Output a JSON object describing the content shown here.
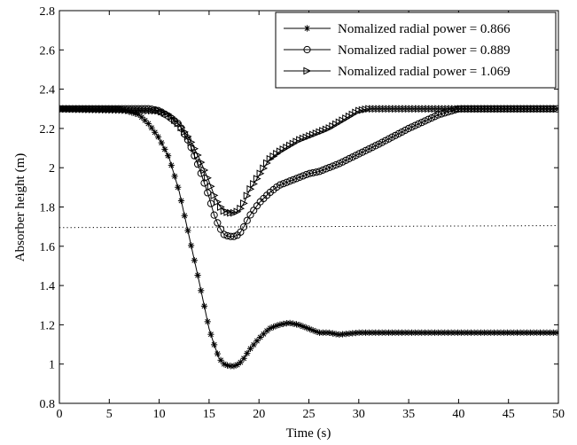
{
  "chart_data": {
    "type": "line",
    "xlabel": "Time (s)",
    "ylabel": "Absorber height (m)",
    "xlim": [
      0,
      50
    ],
    "ylim": [
      0.8,
      2.8
    ],
    "xticks": [
      "0",
      "5",
      "10",
      "15",
      "20",
      "25",
      "30",
      "35",
      "40",
      "45",
      "50"
    ],
    "yticks": [
      "0.8",
      "1",
      "1.2",
      "1.4",
      "1.6",
      "1.8",
      "2",
      "2.2",
      "2.4",
      "2.6",
      "2.8"
    ],
    "grid": false,
    "legend_position": "top-right",
    "series": [
      {
        "name": "Nomalized radial power = 0.866",
        "marker": "star",
        "x": [
          0,
          6,
          8,
          9,
          10,
          11,
          12,
          13,
          14,
          15,
          15.5,
          16,
          16.5,
          17,
          17.5,
          18,
          18.5,
          19,
          20,
          21,
          22,
          23,
          24,
          25,
          26,
          27,
          28,
          30,
          35,
          40,
          45,
          50
        ],
        "y": [
          2.3,
          2.3,
          2.27,
          2.22,
          2.15,
          2.05,
          1.88,
          1.65,
          1.42,
          1.18,
          1.1,
          1.03,
          1.0,
          0.99,
          0.99,
          1.0,
          1.03,
          1.07,
          1.13,
          1.18,
          1.2,
          1.21,
          1.2,
          1.18,
          1.16,
          1.16,
          1.15,
          1.16,
          1.16,
          1.16,
          1.16,
          1.16
        ]
      },
      {
        "name": "Nomalized radial power = 0.889",
        "marker": "circle",
        "x": [
          0,
          8,
          9,
          10,
          11,
          12,
          13,
          14,
          15,
          15.5,
          16,
          16.5,
          17,
          17.5,
          18,
          18.5,
          19,
          20,
          21,
          22,
          23,
          24,
          25,
          26,
          28,
          30,
          32,
          35,
          38,
          40,
          45,
          50
        ],
        "y": [
          2.3,
          2.3,
          2.3,
          2.29,
          2.26,
          2.22,
          2.13,
          2.0,
          1.85,
          1.76,
          1.7,
          1.66,
          1.65,
          1.65,
          1.66,
          1.7,
          1.75,
          1.82,
          1.87,
          1.91,
          1.93,
          1.95,
          1.97,
          1.98,
          2.02,
          2.07,
          2.12,
          2.2,
          2.27,
          2.3,
          2.3,
          2.3
        ]
      },
      {
        "name": "Nomalized radial power = 1.069",
        "marker": "triangle-right",
        "x": [
          0,
          10,
          11,
          12,
          13,
          14,
          15,
          15.5,
          16,
          16.5,
          17,
          17.5,
          18,
          18.5,
          19,
          20,
          21,
          22,
          23,
          24,
          25,
          26,
          27,
          28,
          29,
          30,
          31,
          35,
          40,
          45,
          50
        ],
        "y": [
          2.3,
          2.29,
          2.27,
          2.22,
          2.15,
          2.05,
          1.93,
          1.86,
          1.81,
          1.78,
          1.77,
          1.77,
          1.78,
          1.82,
          1.88,
          1.96,
          2.04,
          2.08,
          2.11,
          2.14,
          2.16,
          2.18,
          2.2,
          2.23,
          2.26,
          2.29,
          2.3,
          2.3,
          2.3,
          2.3,
          2.3
        ]
      },
      {
        "name": "",
        "marker": "none",
        "line_style": "dotted",
        "x": [
          0,
          50
        ],
        "y": [
          1.695,
          1.705
        ]
      }
    ]
  }
}
